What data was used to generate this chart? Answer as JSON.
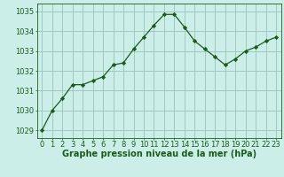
{
  "x": [
    0,
    1,
    2,
    3,
    4,
    5,
    6,
    7,
    8,
    9,
    10,
    11,
    12,
    13,
    14,
    15,
    16,
    17,
    18,
    19,
    20,
    21,
    22,
    23
  ],
  "y": [
    1029.0,
    1030.0,
    1030.6,
    1031.3,
    1031.3,
    1031.5,
    1031.7,
    1032.3,
    1032.4,
    1033.1,
    1033.7,
    1034.3,
    1034.85,
    1034.85,
    1034.2,
    1033.5,
    1033.1,
    1032.7,
    1032.3,
    1032.6,
    1033.0,
    1033.2,
    1033.5,
    1033.7
  ],
  "line_color": "#1a5c1a",
  "marker": "D",
  "marker_size": 2.2,
  "bg_color": "#cceee8",
  "grid_color": "#a0c8c0",
  "ylabel_ticks": [
    1029,
    1030,
    1031,
    1032,
    1033,
    1034,
    1035
  ],
  "xlabel": "Graphe pression niveau de la mer (hPa)",
  "ylim": [
    1028.6,
    1035.4
  ],
  "xlim": [
    -0.5,
    23.5
  ],
  "xlabel_fontsize": 7,
  "tick_fontsize": 6,
  "xlabel_color": "#1a5c1a",
  "tick_color": "#1a5c1a"
}
